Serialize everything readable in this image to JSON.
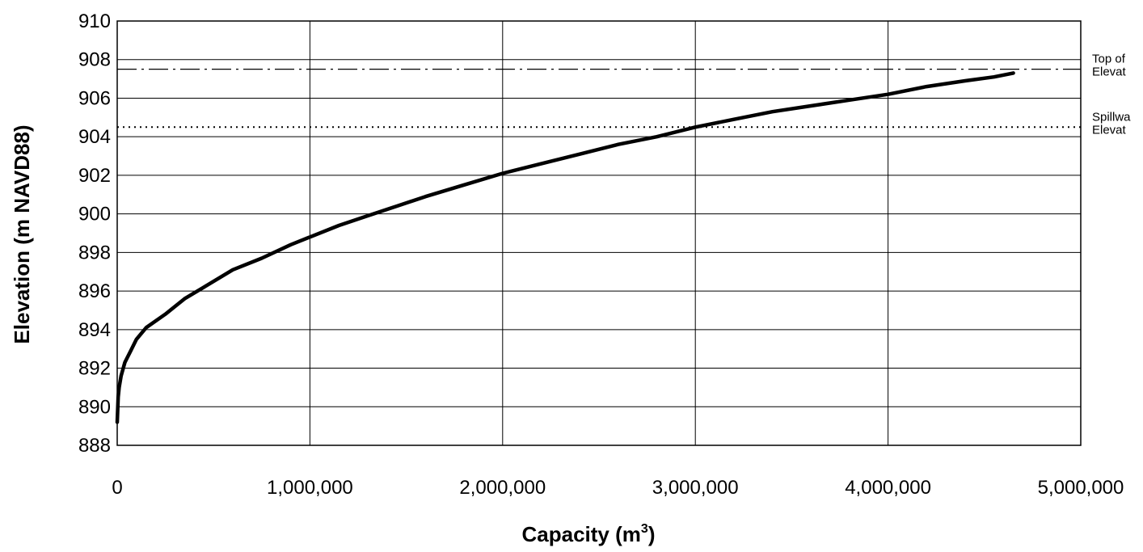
{
  "chart_data": {
    "type": "line",
    "title": "",
    "xlabel": "Capacity (m",
    "xlabel_sup": "3",
    "xlabel_close": ")",
    "ylabel": "Elevation (m NAVD88)",
    "xlim": [
      0,
      5000000
    ],
    "ylim": [
      888,
      910
    ],
    "x_ticks": [
      {
        "value": 0,
        "label": "0"
      },
      {
        "value": 1000000,
        "label": "1,000,000"
      },
      {
        "value": 2000000,
        "label": "2,000,000"
      },
      {
        "value": 3000000,
        "label": "3,000,000"
      },
      {
        "value": 4000000,
        "label": "4,000,000"
      },
      {
        "value": 5000000,
        "label": "5,000,000"
      }
    ],
    "y_ticks": [
      {
        "value": 888,
        "label": "888"
      },
      {
        "value": 890,
        "label": "890"
      },
      {
        "value": 892,
        "label": "892"
      },
      {
        "value": 894,
        "label": "894"
      },
      {
        "value": 896,
        "label": "896"
      },
      {
        "value": 898,
        "label": "898"
      },
      {
        "value": 900,
        "label": "900"
      },
      {
        "value": 902,
        "label": "902"
      },
      {
        "value": 904,
        "label": "904"
      },
      {
        "value": 906,
        "label": "906"
      },
      {
        "value": 908,
        "label": "908"
      },
      {
        "value": 910,
        "label": "910"
      }
    ],
    "grid": true,
    "series": [
      {
        "color": "#000000",
        "points": [
          [
            0,
            889.2
          ],
          [
            5000,
            890.5
          ],
          [
            10000,
            891.0
          ],
          [
            20000,
            891.6
          ],
          [
            40000,
            892.3
          ],
          [
            70000,
            892.9
          ],
          [
            100000,
            893.5
          ],
          [
            150000,
            894.1
          ],
          [
            250000,
            894.8
          ],
          [
            350000,
            895.6
          ],
          [
            450000,
            896.2
          ],
          [
            600000,
            897.1
          ],
          [
            750000,
            897.7
          ],
          [
            900000,
            898.4
          ],
          [
            1000000,
            898.8
          ],
          [
            1150000,
            899.4
          ],
          [
            1300000,
            899.9
          ],
          [
            1450000,
            900.4
          ],
          [
            1600000,
            900.9
          ],
          [
            1800000,
            901.5
          ],
          [
            2000000,
            902.1
          ],
          [
            2200000,
            902.6
          ],
          [
            2400000,
            903.1
          ],
          [
            2600000,
            903.6
          ],
          [
            2800000,
            904.0
          ],
          [
            3000000,
            904.5
          ],
          [
            3200000,
            904.9
          ],
          [
            3400000,
            905.3
          ],
          [
            3600000,
            905.6
          ],
          [
            3800000,
            905.9
          ],
          [
            4000000,
            906.2
          ],
          [
            4200000,
            906.6
          ],
          [
            4400000,
            906.9
          ],
          [
            4550000,
            907.1
          ],
          [
            4650000,
            907.3
          ]
        ]
      }
    ],
    "reference_lines": [
      {
        "y": 907.5,
        "style": "dash-dot",
        "label_lines": [
          "Top of",
          "Elevat"
        ]
      },
      {
        "y": 904.5,
        "style": "dotted",
        "label_lines": [
          "Spillwa",
          "Elevat"
        ]
      }
    ]
  }
}
